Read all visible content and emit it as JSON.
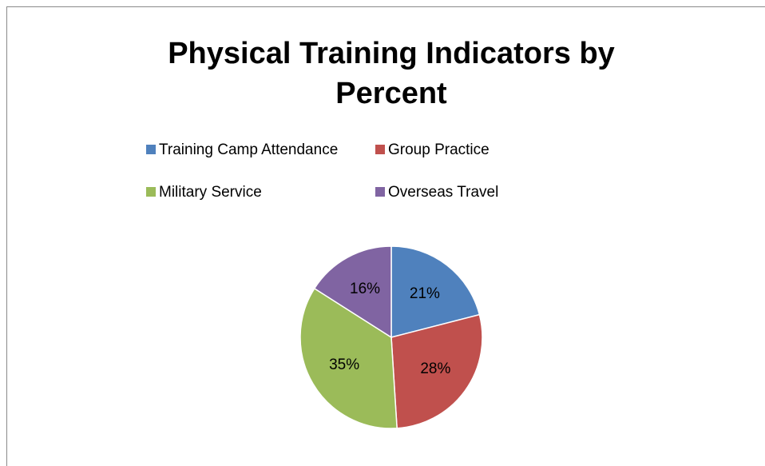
{
  "chart_data": {
    "type": "pie",
    "title": "Physical Training Indicators by Percent",
    "categories": [
      "Training Camp Attendance",
      "Group Practice",
      "Military Service",
      "Overseas Travel"
    ],
    "values": [
      21,
      28,
      35,
      16
    ],
    "value_labels": [
      "21%",
      "28%",
      "35%",
      "16%"
    ],
    "colors": [
      "#4f81bd",
      "#c0504d",
      "#9bbb59",
      "#8064a2"
    ],
    "legend": "top"
  }
}
